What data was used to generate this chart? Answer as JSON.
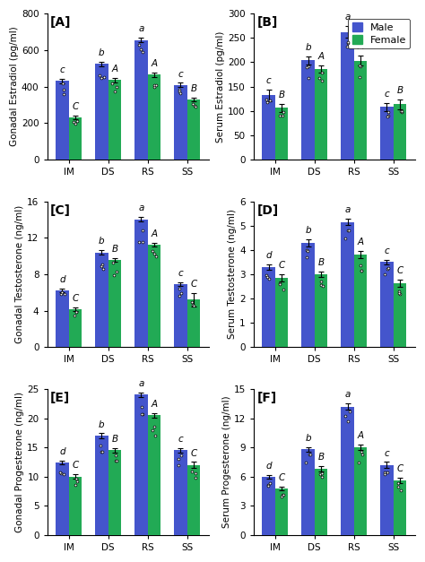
{
  "panels": [
    {
      "label": "[A]",
      "ylabel": "Gonadal Estradiol (pg/ml)",
      "ylim": [
        0,
        800
      ],
      "yticks": [
        0,
        200,
        400,
        600,
        800
      ],
      "male_values": [
        430,
        525,
        655,
        410
      ],
      "female_values": [
        230,
        435,
        465,
        330
      ],
      "male_err": [
        12,
        12,
        12,
        10
      ],
      "female_err": [
        10,
        12,
        12,
        10
      ],
      "male_letters": [
        "c",
        "b",
        "a",
        "c"
      ],
      "female_letters": [
        "C",
        "A",
        "A",
        "B"
      ],
      "xticklabels": [
        "IM",
        "DS",
        "RS",
        "SS"
      ]
    },
    {
      "label": "[B]",
      "ylabel": "Serum Estradiol (pg/ml)",
      "ylim": [
        0,
        300
      ],
      "yticks": [
        0,
        50,
        100,
        150,
        200,
        250,
        300
      ],
      "male_values": [
        132,
        204,
        262,
        108
      ],
      "female_values": [
        106,
        186,
        203,
        114
      ],
      "male_err": [
        12,
        8,
        12,
        8
      ],
      "female_err": [
        8,
        8,
        10,
        10
      ],
      "male_letters": [
        "c",
        "b",
        "a",
        "c"
      ],
      "female_letters": [
        "B",
        "A",
        "A",
        "B"
      ],
      "xticklabels": [
        "IM",
        "DS",
        "RS",
        "SS"
      ],
      "legend": true
    },
    {
      "label": "[C]",
      "ylabel": "Gonadal Testosterone (ng/ml)",
      "ylim": [
        0,
        16.0
      ],
      "yticks": [
        0.0,
        4.0,
        8.0,
        12.0,
        16.0
      ],
      "male_values": [
        6.2,
        10.4,
        14.0,
        6.9
      ],
      "female_values": [
        4.2,
        9.6,
        11.2,
        5.2
      ],
      "male_err": [
        0.2,
        0.25,
        0.25,
        0.2
      ],
      "female_err": [
        0.2,
        0.2,
        0.2,
        0.7
      ],
      "male_letters": [
        "d",
        "b",
        "a",
        "c"
      ],
      "female_letters": [
        "C",
        "B",
        "A",
        "C"
      ],
      "xticklabels": [
        "IM",
        "DS",
        "RS",
        "SS"
      ]
    },
    {
      "label": "[D]",
      "ylabel": "Serum Testosterone (ng/ml)",
      "ylim": [
        0.0,
        6.0
      ],
      "yticks": [
        0.0,
        1.0,
        2.0,
        3.0,
        4.0,
        5.0,
        6.0
      ],
      "male_values": [
        3.3,
        4.3,
        5.15,
        3.5
      ],
      "female_values": [
        2.85,
        3.0,
        3.8,
        2.62
      ],
      "male_err": [
        0.1,
        0.15,
        0.12,
        0.1
      ],
      "female_err": [
        0.15,
        0.1,
        0.15,
        0.15
      ],
      "male_letters": [
        "d",
        "b",
        "a",
        "c"
      ],
      "female_letters": [
        "C",
        "B",
        "A",
        "C"
      ],
      "xticklabels": [
        "IM",
        "DS",
        "RS",
        "SS"
      ]
    },
    {
      "label": "[E]",
      "ylabel": "Gonadal Progesterone (ng/ml)",
      "ylim": [
        0,
        25.0
      ],
      "yticks": [
        0.0,
        5.0,
        10.0,
        15.0,
        20.0,
        25.0
      ],
      "male_values": [
        12.4,
        17.0,
        24.0,
        14.5
      ],
      "female_values": [
        10.0,
        14.5,
        20.5,
        12.0
      ],
      "male_err": [
        0.3,
        0.4,
        0.4,
        0.4
      ],
      "female_err": [
        0.4,
        0.4,
        0.4,
        0.5
      ],
      "male_letters": [
        "d",
        "b",
        "a",
        "c"
      ],
      "female_letters": [
        "C",
        "B",
        "A",
        "C"
      ],
      "xticklabels": [
        "IM",
        "DS",
        "RS",
        "SS"
      ]
    },
    {
      "label": "[F]",
      "ylabel": "Serum Progesterone (ng/ml)",
      "ylim": [
        0,
        15.0
      ],
      "yticks": [
        0.0,
        3.0,
        6.0,
        9.0,
        12.0,
        15.0
      ],
      "male_values": [
        6.0,
        8.8,
        13.2,
        7.2
      ],
      "female_values": [
        4.8,
        6.8,
        9.0,
        5.6
      ],
      "male_err": [
        0.2,
        0.25,
        0.35,
        0.3
      ],
      "female_err": [
        0.2,
        0.25,
        0.3,
        0.3
      ],
      "male_letters": [
        "d",
        "b",
        "a",
        "c"
      ],
      "female_letters": [
        "C",
        "B",
        "A",
        "C"
      ],
      "xticklabels": [
        "IM",
        "DS",
        "RS",
        "SS"
      ]
    }
  ],
  "male_color": "#4455CC",
  "female_color": "#22AA55",
  "bar_width": 0.33,
  "error_color": "black",
  "background_color": "#ffffff",
  "label_fontsize": 7.5,
  "tick_fontsize": 7.5,
  "letter_fontsize": 7.5,
  "panel_label_fontsize": 10,
  "legend_fontsize": 8
}
